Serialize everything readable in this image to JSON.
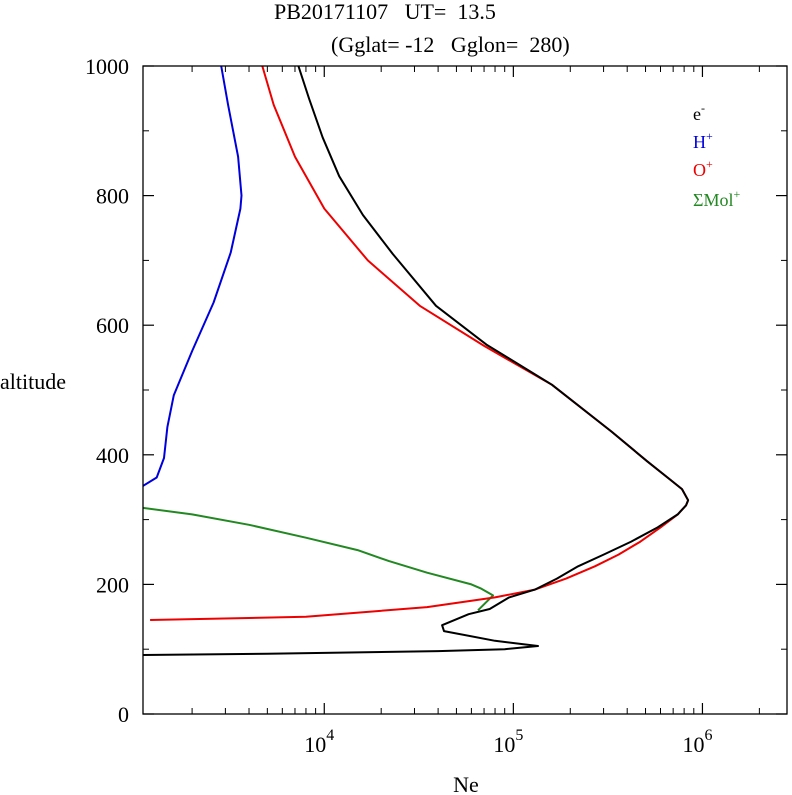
{
  "chart_data": {
    "type": "line",
    "title": "PB20171107   UT=  13.5",
    "subtitle": "(Gglat= -12   Gglon=  280)",
    "xlabel": "Ne",
    "ylabel": "altitude",
    "xscale": "log",
    "xlim": [
      1100,
      2800000
    ],
    "ylim": [
      0,
      1000
    ],
    "x_tick_labels": [
      {
        "value": 10000,
        "base": "10",
        "exp": "4"
      },
      {
        "value": 100000,
        "base": "10",
        "exp": "5"
      },
      {
        "value": 1000000,
        "base": "10",
        "exp": "6"
      }
    ],
    "y_ticks": [
      0,
      200,
      400,
      600,
      800,
      1000
    ],
    "grid": false,
    "legend_position": "top-right",
    "series": [
      {
        "name": "e-",
        "legend_base": "e",
        "legend_sup": "-",
        "color": "#000000",
        "points": [
          [
            1100,
            91
          ],
          [
            5000,
            93
          ],
          [
            40000,
            97
          ],
          [
            90000,
            100
          ],
          [
            135000,
            105
          ],
          [
            80000,
            113
          ],
          [
            43000,
            128
          ],
          [
            42000,
            137
          ],
          [
            58000,
            154
          ],
          [
            75000,
            162
          ],
          [
            95000,
            180
          ],
          [
            130000,
            192
          ],
          [
            170000,
            209
          ],
          [
            220000,
            228
          ],
          [
            300000,
            246
          ],
          [
            420000,
            266
          ],
          [
            580000,
            288
          ],
          [
            740000,
            308
          ],
          [
            820000,
            322
          ],
          [
            840000,
            330
          ],
          [
            780000,
            347
          ],
          [
            680000,
            361
          ],
          [
            510000,
            390
          ],
          [
            330000,
            436
          ],
          [
            160000,
            508
          ],
          [
            72000,
            570
          ],
          [
            39000,
            630
          ],
          [
            23000,
            710
          ],
          [
            16000,
            770
          ],
          [
            12000,
            830
          ],
          [
            9800,
            890
          ],
          [
            8300,
            950
          ],
          [
            7300,
            1000
          ]
        ]
      },
      {
        "name": "H+",
        "legend_base": "H",
        "legend_sup": "+",
        "color": "#0000dd",
        "points": [
          [
            1100,
            352
          ],
          [
            1300,
            365
          ],
          [
            1420,
            395
          ],
          [
            1480,
            443
          ],
          [
            1600,
            492
          ],
          [
            2000,
            560
          ],
          [
            2600,
            635
          ],
          [
            3200,
            712
          ],
          [
            3600,
            780
          ],
          [
            3650,
            800
          ],
          [
            3500,
            860
          ],
          [
            3100,
            940
          ],
          [
            2850,
            1000
          ]
        ]
      },
      {
        "name": "O+",
        "legend_base": "O",
        "legend_sup": "+",
        "color": "#ee0000",
        "points": [
          [
            1200,
            145
          ],
          [
            8000,
            150
          ],
          [
            35000,
            165
          ],
          [
            80000,
            180
          ],
          [
            130000,
            192
          ],
          [
            190000,
            209
          ],
          [
            270000,
            228
          ],
          [
            360000,
            246
          ],
          [
            470000,
            266
          ],
          [
            600000,
            288
          ],
          [
            740000,
            308
          ],
          [
            820000,
            322
          ],
          [
            840000,
            330
          ],
          [
            780000,
            347
          ],
          [
            680000,
            361
          ],
          [
            510000,
            390
          ],
          [
            330000,
            436
          ],
          [
            160000,
            508
          ],
          [
            70000,
            568
          ],
          [
            32000,
            630
          ],
          [
            17000,
            700
          ],
          [
            10000,
            780
          ],
          [
            7000,
            860
          ],
          [
            5400,
            940
          ],
          [
            4700,
            1000
          ]
        ]
      },
      {
        "name": "ΣMol+",
        "legend_base": "ΣMol",
        "legend_sup": "+",
        "color": "#228822",
        "points": [
          [
            1100,
            318
          ],
          [
            2000,
            308
          ],
          [
            4000,
            292
          ],
          [
            8000,
            272
          ],
          [
            15000,
            253
          ],
          [
            22000,
            236
          ],
          [
            35000,
            218
          ],
          [
            60000,
            200
          ],
          [
            67000,
            194
          ],
          [
            78000,
            183
          ],
          [
            65000,
            160
          ]
        ]
      }
    ]
  }
}
